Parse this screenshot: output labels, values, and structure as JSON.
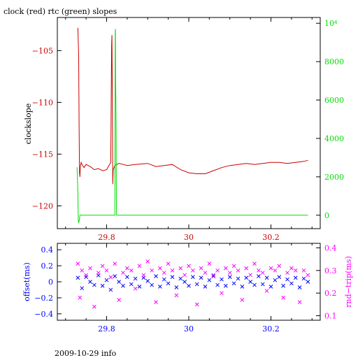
{
  "title": "clock (red) rtc (green) slopes",
  "footer": "2009-10-29 info",
  "colors": {
    "clock": "#cc0000",
    "rtc": "#00dd00",
    "offset": "#0000ff",
    "rndtrip": "#ff00ff",
    "axes": "#000000"
  },
  "chart_data": [
    {
      "type": "line",
      "title": "clock (red) rtc (green) slopes",
      "xlim": [
        29.68,
        30.32
      ],
      "x_ticks": [
        29.8,
        30.0,
        30.2
      ],
      "x_tick_labels": [
        "29.8",
        "30",
        "30.2"
      ],
      "left_axis": {
        "label": "clockslope",
        "ylim": [
          -122.2,
          -101.8
        ],
        "ticks": [
          -120,
          -115,
          -110,
          -105
        ],
        "tick_labels": [
          "−120",
          "−115",
          "−110",
          "−105"
        ]
      },
      "right_axis": {
        "label": "",
        "ylim": [
          -700,
          10300
        ],
        "ticks": [
          0,
          2000,
          4000,
          6000,
          8000,
          10000
        ],
        "tick_labels": [
          "0",
          "2000",
          "4000",
          "6000",
          "8000",
          "10⁴"
        ]
      },
      "series": [
        {
          "name": "clock",
          "axis": "left",
          "x": [
            29.73,
            29.732,
            29.733,
            29.734,
            29.735,
            29.736,
            29.738,
            29.74,
            29.745,
            29.75,
            29.76,
            29.77,
            29.78,
            29.79,
            29.8,
            29.81,
            29.812,
            29.813,
            29.814,
            29.815,
            29.816,
            29.818,
            29.82,
            29.83,
            29.84,
            29.85,
            29.87,
            29.9,
            29.92,
            29.94,
            29.96,
            29.98,
            30.0,
            30.02,
            30.04,
            30.06,
            30.08,
            30.1,
            30.12,
            30.14,
            30.16,
            30.18,
            30.2,
            30.22,
            30.24,
            30.26,
            30.28,
            30.29
          ],
          "y": [
            -102.8,
            -105.5,
            -112.0,
            -116.8,
            -117.2,
            -116.2,
            -115.8,
            -116.0,
            -116.3,
            -116.0,
            -116.2,
            -116.5,
            -116.4,
            -116.6,
            -116.5,
            -115.8,
            -104.5,
            -103.5,
            -110.0,
            -117.9,
            -116.5,
            -116.3,
            -116.1,
            -115.9,
            -116.0,
            -116.1,
            -116.0,
            -115.9,
            -116.2,
            -116.1,
            -116.0,
            -116.5,
            -116.8,
            -116.9,
            -116.9,
            -116.6,
            -116.3,
            -116.1,
            -116.0,
            -115.9,
            -116.0,
            -115.9,
            -115.8,
            -115.8,
            -115.9,
            -115.8,
            -115.7,
            -115.6
          ]
        },
        {
          "name": "rtc",
          "axis": "right",
          "x": [
            29.728,
            29.73,
            29.731,
            29.732,
            29.734,
            29.735,
            29.737,
            29.74,
            29.8,
            29.82,
            29.8205,
            29.821,
            29.8215,
            29.822,
            29.823,
            29.824,
            29.9,
            30.0,
            30.1,
            30.2,
            30.29
          ],
          "y": [
            2500,
            1200,
            -300,
            -400,
            -200,
            0,
            0,
            0,
            0,
            0,
            3000,
            9500,
            9700,
            7000,
            5000,
            0,
            0,
            0,
            0,
            0,
            0
          ]
        }
      ]
    },
    {
      "type": "scatter",
      "title": "",
      "xlim": [
        29.68,
        30.32
      ],
      "x_ticks": [
        29.8,
        30.0,
        30.2
      ],
      "x_tick_labels": [
        "29.8",
        "30",
        "30.2"
      ],
      "left_axis": {
        "label": "offset(ms)",
        "ylim": [
          -0.48,
          0.48
        ],
        "ticks": [
          -0.4,
          -0.2,
          0.0,
          0.2,
          0.4
        ],
        "tick_labels": [
          "−0.4",
          "−0.2",
          "0",
          "0.2",
          "0.4"
        ]
      },
      "right_axis": {
        "label": "rnd−trip(ms)",
        "ylim": [
          0.08,
          0.42
        ],
        "ticks": [
          0.1,
          0.2,
          0.3,
          0.4
        ],
        "tick_labels": [
          "0.1",
          "0.2",
          "0.3",
          "0.4"
        ]
      },
      "series": [
        {
          "name": "offset",
          "axis": "left",
          "marker": "x",
          "x": [
            29.73,
            29.74,
            29.75,
            29.76,
            29.77,
            29.78,
            29.79,
            29.8,
            29.81,
            29.82,
            29.83,
            29.84,
            29.85,
            29.86,
            29.87,
            29.88,
            29.89,
            29.9,
            29.91,
            29.92,
            29.93,
            29.94,
            29.95,
            29.96,
            29.97,
            29.98,
            29.99,
            30.0,
            30.01,
            30.02,
            30.03,
            30.04,
            30.05,
            30.06,
            30.07,
            30.08,
            30.09,
            30.1,
            30.11,
            30.12,
            30.13,
            30.14,
            30.15,
            30.16,
            30.17,
            30.18,
            30.19,
            30.2,
            30.21,
            30.22,
            30.23,
            30.24,
            30.25,
            30.26,
            30.27,
            30.28,
            30.29
          ],
          "y": [
            0.05,
            -0.08,
            0.06,
            0.0,
            -0.04,
            0.08,
            -0.05,
            0.02,
            -0.1,
            0.07,
            0.0,
            -0.05,
            0.06,
            -0.03,
            0.04,
            -0.06,
            0.05,
            0.01,
            -0.04,
            0.07,
            -0.06,
            0.03,
            -0.02,
            0.06,
            -0.07,
            0.04,
            0.0,
            -0.05,
            0.06,
            -0.03,
            0.05,
            -0.06,
            0.02,
            0.07,
            -0.04,
            0.03,
            -0.05,
            0.06,
            -0.02,
            0.04,
            -0.06,
            0.05,
            0.0,
            -0.04,
            0.07,
            -0.03,
            0.05,
            -0.06,
            0.02,
            0.06,
            -0.05,
            0.03,
            -0.02,
            0.05,
            -0.07,
            0.04,
            0.0
          ]
        },
        {
          "name": "rnd-trip",
          "axis": "right",
          "marker": "x",
          "x": [
            29.73,
            29.735,
            29.74,
            29.75,
            29.76,
            29.77,
            29.78,
            29.79,
            29.8,
            29.81,
            29.82,
            29.83,
            29.84,
            29.85,
            29.86,
            29.87,
            29.88,
            29.89,
            29.9,
            29.91,
            29.92,
            29.93,
            29.94,
            29.95,
            29.96,
            29.97,
            29.98,
            29.99,
            30.0,
            30.01,
            30.02,
            30.03,
            30.04,
            30.05,
            30.06,
            30.07,
            30.08,
            30.09,
            30.1,
            30.11,
            30.12,
            30.13,
            30.14,
            30.15,
            30.16,
            30.17,
            30.18,
            30.19,
            30.2,
            30.21,
            30.22,
            30.23,
            30.24,
            30.25,
            30.26,
            30.27,
            30.28,
            30.29
          ],
          "y": [
            0.33,
            0.18,
            0.3,
            0.28,
            0.31,
            0.14,
            0.29,
            0.32,
            0.3,
            0.27,
            0.33,
            0.17,
            0.29,
            0.31,
            0.3,
            0.22,
            0.32,
            0.28,
            0.34,
            0.3,
            0.16,
            0.31,
            0.29,
            0.33,
            0.3,
            0.19,
            0.31,
            0.28,
            0.32,
            0.3,
            0.15,
            0.31,
            0.29,
            0.33,
            0.28,
            0.3,
            0.2,
            0.31,
            0.29,
            0.32,
            0.3,
            0.17,
            0.31,
            0.28,
            0.33,
            0.3,
            0.29,
            0.21,
            0.31,
            0.3,
            0.32,
            0.18,
            0.29,
            0.31,
            0.3,
            0.16,
            0.3,
            0.28
          ]
        }
      ]
    }
  ]
}
